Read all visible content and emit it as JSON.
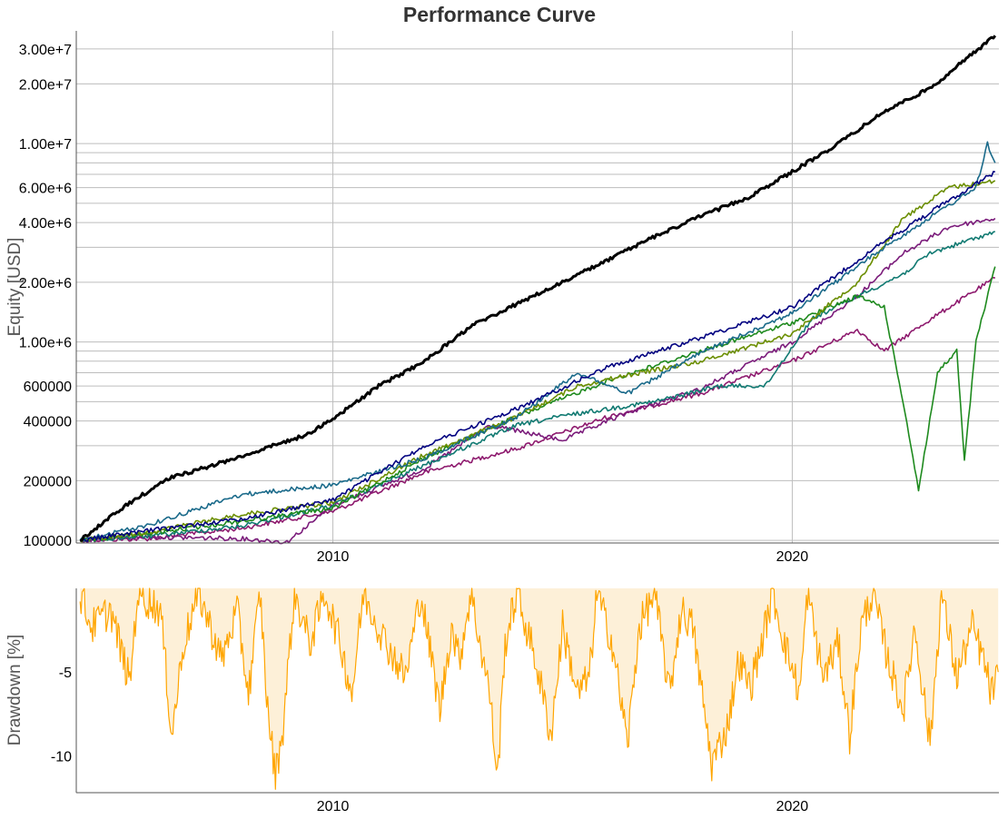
{
  "chart_data": [
    {
      "type": "line",
      "title": "Performance Curve",
      "ylabel": "Equity [USD]",
      "xlabel": "",
      "yscale": "log",
      "ylim": [
        97000,
        37000000
      ],
      "xlim": [
        "2004-06-01",
        "2024-07-01"
      ],
      "grid": true,
      "legend": "none",
      "x_ticks": [
        "2010",
        "2020"
      ],
      "y_ticks": [
        {
          "value": 100000,
          "label": "100000"
        },
        {
          "value": 200000,
          "label": "200000"
        },
        {
          "value": 300000,
          "label": ""
        },
        {
          "value": 400000,
          "label": "400000"
        },
        {
          "value": 500000,
          "label": ""
        },
        {
          "value": 600000,
          "label": "600000"
        },
        {
          "value": 700000,
          "label": ""
        },
        {
          "value": 800000,
          "label": ""
        },
        {
          "value": 900000,
          "label": ""
        },
        {
          "value": 1000000,
          "label": "1.00e+6"
        },
        {
          "value": 2000000,
          "label": "2.00e+6"
        },
        {
          "value": 3000000,
          "label": ""
        },
        {
          "value": 4000000,
          "label": "4.00e+6"
        },
        {
          "value": 5000000,
          "label": ""
        },
        {
          "value": 6000000,
          "label": "6.00e+6"
        },
        {
          "value": 7000000,
          "label": ""
        },
        {
          "value": 8000000,
          "label": ""
        },
        {
          "value": 9000000,
          "label": ""
        },
        {
          "value": 10000000,
          "label": "1.00e+7"
        },
        {
          "value": 20000000,
          "label": "2.00e+7"
        },
        {
          "value": 30000000,
          "label": "3.00e+7"
        }
      ],
      "series": [
        {
          "color": "#000000",
          "width": 3,
          "points": [
            [
              "2004-07-01",
              100000
            ],
            [
              "2005-07-01",
              150000
            ],
            [
              "2006-06-01",
              205000
            ],
            [
              "2007-06-01",
              240000
            ],
            [
              "2008-06-01",
              285000
            ],
            [
              "2009-06-01",
              340000
            ],
            [
              "2010-01-01",
              410000
            ],
            [
              "2011-01-01",
              600000
            ],
            [
              "2012-01-01",
              800000
            ],
            [
              "2013-01-01",
              1200000
            ],
            [
              "2014-01-01",
              1550000
            ],
            [
              "2015-01-01",
              2000000
            ],
            [
              "2016-01-01",
              2600000
            ],
            [
              "2017-01-01",
              3400000
            ],
            [
              "2018-01-01",
              4300000
            ],
            [
              "2019-01-01",
              5300000
            ],
            [
              "2020-01-01",
              7200000
            ],
            [
              "2021-01-01",
              10000000
            ],
            [
              "2022-01-01",
              14500000
            ],
            [
              "2023-01-01",
              19000000
            ],
            [
              "2024-06-01",
              35000000
            ]
          ]
        },
        {
          "color": "#000080",
          "width": 1.6,
          "points": [
            [
              "2004-07-01",
              100000
            ],
            [
              "2006-01-01",
              112000
            ],
            [
              "2008-01-01",
              128000
            ],
            [
              "2010-01-01",
              160000
            ],
            [
              "2012-01-01",
              300000
            ],
            [
              "2014-01-01",
              460000
            ],
            [
              "2016-01-01",
              750000
            ],
            [
              "2018-01-01",
              1050000
            ],
            [
              "2020-01-01",
              1500000
            ],
            [
              "2021-01-01",
              2200000
            ],
            [
              "2022-01-01",
              3200000
            ],
            [
              "2023-01-01",
              4500000
            ],
            [
              "2024-06-01",
              7200000
            ]
          ]
        },
        {
          "color": "#1a6a8a",
          "width": 1.6,
          "points": [
            [
              "2004-07-01",
              100000
            ],
            [
              "2006-01-01",
              120000
            ],
            [
              "2008-01-01",
              170000
            ],
            [
              "2010-01-01",
              190000
            ],
            [
              "2012-01-01",
              260000
            ],
            [
              "2014-01-01",
              420000
            ],
            [
              "2015-05-01",
              700000
            ],
            [
              "2016-06-01",
              550000
            ],
            [
              "2018-01-01",
              880000
            ],
            [
              "2020-01-01",
              1400000
            ],
            [
              "2022-01-01",
              3000000
            ],
            [
              "2024-01-01",
              6000000
            ],
            [
              "2024-04-01",
              10000000
            ],
            [
              "2024-06-01",
              8000000
            ]
          ]
        },
        {
          "color": "#6b8e00",
          "width": 1.6,
          "points": [
            [
              "2004-07-01",
              100000
            ],
            [
              "2006-01-01",
              110000
            ],
            [
              "2008-01-01",
              135000
            ],
            [
              "2010-01-01",
              155000
            ],
            [
              "2012-01-01",
              270000
            ],
            [
              "2014-01-01",
              420000
            ],
            [
              "2015-05-01",
              600000
            ],
            [
              "2016-06-01",
              680000
            ],
            [
              "2018-01-01",
              800000
            ],
            [
              "2020-01-01",
              1100000
            ],
            [
              "2021-06-01",
              2000000
            ],
            [
              "2022-06-01",
              4200000
            ],
            [
              "2023-06-01",
              6000000
            ],
            [
              "2024-06-01",
              6500000
            ]
          ]
        },
        {
          "color": "#1e8a1e",
          "width": 1.6,
          "points": [
            [
              "2004-07-01",
              100000
            ],
            [
              "2006-01-01",
              108000
            ],
            [
              "2008-01-01",
              125000
            ],
            [
              "2010-01-01",
              145000
            ],
            [
              "2012-01-01",
              260000
            ],
            [
              "2014-01-01",
              420000
            ],
            [
              "2016-01-01",
              640000
            ],
            [
              "2018-01-01",
              900000
            ],
            [
              "2020-01-01",
              1250000
            ],
            [
              "2021-06-01",
              1700000
            ],
            [
              "2022-01-01",
              1500000
            ],
            [
              "2022-06-01",
              500000
            ],
            [
              "2022-10-01",
              180000
            ],
            [
              "2023-03-01",
              700000
            ],
            [
              "2023-08-01",
              900000
            ],
            [
              "2023-10-01",
              250000
            ],
            [
              "2024-01-01",
              1000000
            ],
            [
              "2024-06-01",
              2400000
            ]
          ]
        },
        {
          "color": "#117a72",
          "width": 1.6,
          "points": [
            [
              "2004-07-01",
              100000
            ],
            [
              "2006-01-01",
              105000
            ],
            [
              "2008-01-01",
              118000
            ],
            [
              "2010-01-01",
              150000
            ],
            [
              "2012-01-01",
              240000
            ],
            [
              "2014-01-01",
              380000
            ],
            [
              "2015-03-01",
              430000
            ],
            [
              "2017-01-01",
              500000
            ],
            [
              "2018-06-01",
              600000
            ],
            [
              "2019-06-01",
              600000
            ],
            [
              "2020-06-01",
              1300000
            ],
            [
              "2021-06-01",
              1700000
            ],
            [
              "2022-06-01",
              2200000
            ],
            [
              "2023-01-01",
              2800000
            ],
            [
              "2024-06-01",
              3600000
            ]
          ]
        },
        {
          "color": "#7b1c7b",
          "width": 1.6,
          "points": [
            [
              "2004-07-01",
              100000
            ],
            [
              "2006-01-01",
              104000
            ],
            [
              "2008-01-01",
              102000
            ],
            [
              "2009-01-01",
              98000
            ],
            [
              "2010-01-01",
              150000
            ],
            [
              "2012-01-01",
              230000
            ],
            [
              "2013-06-01",
              380000
            ],
            [
              "2015-01-01",
              320000
            ],
            [
              "2016-06-01",
              440000
            ],
            [
              "2018-01-01",
              580000
            ],
            [
              "2020-01-01",
              1000000
            ],
            [
              "2021-06-01",
              1700000
            ],
            [
              "2022-06-01",
              2800000
            ],
            [
              "2023-06-01",
              3800000
            ],
            [
              "2024-06-01",
              4200000
            ]
          ]
        },
        {
          "color": "#8e1a6e",
          "width": 1.6,
          "points": [
            [
              "2004-07-01",
              100000
            ],
            [
              "2006-01-01",
              102000
            ],
            [
              "2008-01-01",
              115000
            ],
            [
              "2010-01-01",
              140000
            ],
            [
              "2012-01-01",
              220000
            ],
            [
              "2014-01-01",
              290000
            ],
            [
              "2016-01-01",
              420000
            ],
            [
              "2018-01-01",
              550000
            ],
            [
              "2020-01-01",
              800000
            ],
            [
              "2021-06-01",
              1150000
            ],
            [
              "2022-01-01",
              900000
            ],
            [
              "2023-01-01",
              1300000
            ],
            [
              "2024-06-01",
              2100000
            ]
          ]
        }
      ]
    },
    {
      "type": "area",
      "ylabel": "Drawdown [%]",
      "xlabel": "",
      "ylim": [
        -12.2,
        0
      ],
      "xlim": [
        "2004-06-01",
        "2024-07-01"
      ],
      "grid": false,
      "legend": "none",
      "color": "#ffa500",
      "fill": "#fdf0d8",
      "x_ticks": [
        "2010",
        "2020"
      ],
      "y_ticks": [
        {
          "value": -5,
          "label": "-5"
        },
        {
          "value": -10,
          "label": "-10"
        }
      ],
      "points": [
        [
          "2004-07-01",
          0
        ],
        [
          "2004-10-01",
          -2
        ],
        [
          "2005-03-01",
          -1
        ],
        [
          "2005-08-01",
          -5.4
        ],
        [
          "2005-10-01",
          0
        ],
        [
          "2006-04-01",
          -1
        ],
        [
          "2006-07-01",
          -8.5
        ],
        [
          "2006-10-01",
          -3
        ],
        [
          "2007-02-01",
          0
        ],
        [
          "2007-08-01",
          -4
        ],
        [
          "2007-12-01",
          -1
        ],
        [
          "2008-03-01",
          -6
        ],
        [
          "2008-06-01",
          0
        ],
        [
          "2008-08-01",
          -7
        ],
        [
          "2008-10-01",
          -10.9
        ],
        [
          "2008-12-01",
          -8
        ],
        [
          "2009-03-01",
          0
        ],
        [
          "2009-07-01",
          -3
        ],
        [
          "2009-11-01",
          0
        ],
        [
          "2010-03-01",
          -3
        ],
        [
          "2010-06-01",
          -6
        ],
        [
          "2010-09-01",
          0
        ],
        [
          "2011-03-01",
          -3
        ],
        [
          "2011-08-01",
          -5
        ],
        [
          "2011-12-01",
          0
        ],
        [
          "2012-05-01",
          -7
        ],
        [
          "2012-08-01",
          -2
        ],
        [
          "2012-10-01",
          -4
        ],
        [
          "2013-01-01",
          0
        ],
        [
          "2013-06-01",
          -6
        ],
        [
          "2013-08-01",
          -11.1
        ],
        [
          "2013-10-01",
          -3
        ],
        [
          "2014-01-01",
          0
        ],
        [
          "2014-06-01",
          -4
        ],
        [
          "2014-10-01",
          -8.5
        ],
        [
          "2015-01-01",
          -2
        ],
        [
          "2015-05-01",
          -6
        ],
        [
          "2015-08-01",
          -5
        ],
        [
          "2015-10-01",
          0
        ],
        [
          "2016-02-01",
          -3
        ],
        [
          "2016-06-01",
          -9
        ],
        [
          "2016-09-01",
          -2
        ],
        [
          "2017-01-01",
          0
        ],
        [
          "2017-05-01",
          -6
        ],
        [
          "2017-08-01",
          -1
        ],
        [
          "2017-11-01",
          -2
        ],
        [
          "2018-02-01",
          -7
        ],
        [
          "2018-04-01",
          -10.2
        ],
        [
          "2018-08-01",
          -8
        ],
        [
          "2018-11-01",
          -4
        ],
        [
          "2019-02-01",
          -5.6
        ],
        [
          "2019-05-01",
          -3
        ],
        [
          "2019-08-01",
          0
        ],
        [
          "2019-11-01",
          -3
        ],
        [
          "2020-03-01",
          -6
        ],
        [
          "2020-05-01",
          0
        ],
        [
          "2020-09-01",
          -5
        ],
        [
          "2021-01-01",
          -3
        ],
        [
          "2021-04-01",
          -8.5
        ],
        [
          "2021-07-01",
          -2
        ],
        [
          "2021-10-01",
          0
        ],
        [
          "2022-02-01",
          -4
        ],
        [
          "2022-06-01",
          -7
        ],
        [
          "2022-09-01",
          -2
        ],
        [
          "2023-01-01",
          -9
        ],
        [
          "2023-04-01",
          0
        ],
        [
          "2023-08-01",
          -5
        ],
        [
          "2023-12-01",
          -2
        ],
        [
          "2024-03-01",
          -4
        ],
        [
          "2024-05-01",
          -6
        ],
        [
          "2024-06-25",
          -5
        ]
      ]
    }
  ]
}
